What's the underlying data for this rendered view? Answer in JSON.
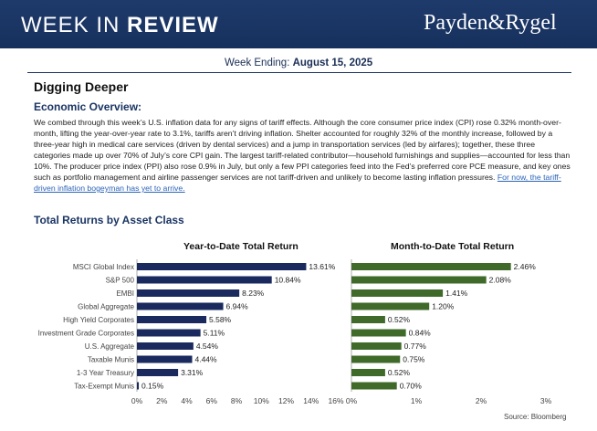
{
  "header": {
    "title_light": "WEEK IN ",
    "title_bold": "REVIEW",
    "logo": "Payden&Rygel"
  },
  "week": {
    "label": "Week Ending: ",
    "date": "August 15, 2025"
  },
  "section": {
    "title": "Digging Deeper",
    "subtitle": "Economic Overview:",
    "body": "We combed through this week’s U.S. inflation data for any signs of tariff effects. Although the core consumer price index (CPI) rose 0.32% month-over-month, lifting the year-over-year rate to 3.1%, tariffs aren’t driving inflation. Shelter accounted for roughly 32% of the monthly increase, followed by a three-year high in medical care services (driven by dental services) and a jump in transportation services (led by airfares); together, these three categories made up over 70% of July’s core CPI gain. The largest tariff-related contributor—household furnishings and supplies—accounted for less than 10%. The producer price index (PPI) also rose 0.9% in July, but only a few PPI categories feed into the Fed’s preferred core PCE measure, and key ones such as portfolio management and airline passenger services are not tariff-driven and unlikely to become lasting inflation pressures. ",
    "link_text": "For now, the tariff-driven inflation bogeyman has yet to arrive."
  },
  "returns": {
    "title": "Total Returns by Asset Class",
    "source": "Source: Bloomberg"
  },
  "chart_data": [
    {
      "type": "bar",
      "orientation": "horizontal",
      "title": "Year-to-Date Total Return",
      "categories": [
        "MSCI Global Index",
        "S&P 500",
        "EMBI",
        "Global Aggregate",
        "High Yield Corporates",
        "Investment Grade Corporates",
        "U.S. Aggregate",
        "Taxable Munis",
        "1-3 Year Treasury",
        "Tax-Exempt Munis"
      ],
      "values": [
        13.61,
        10.84,
        8.23,
        6.94,
        5.58,
        5.11,
        4.54,
        4.44,
        3.31,
        0.15
      ],
      "value_labels": [
        "13.61%",
        "10.84%",
        "8.23%",
        "6.94%",
        "5.58%",
        "5.11%",
        "4.54%",
        "4.44%",
        "3.31%",
        "0.15%"
      ],
      "xlim": [
        0,
        16
      ],
      "xticks": [
        "0%",
        "2%",
        "4%",
        "6%",
        "8%",
        "10%",
        "12%",
        "14%",
        "16%"
      ],
      "color": "#1a2a5e"
    },
    {
      "type": "bar",
      "orientation": "horizontal",
      "title": "Month-to-Date Total Return",
      "values": [
        2.46,
        2.08,
        1.41,
        1.2,
        0.52,
        0.84,
        0.77,
        0.75,
        0.52,
        0.7
      ],
      "value_labels": [
        "2.46%",
        "2.08%",
        "1.41%",
        "1.20%",
        "0.52%",
        "0.84%",
        "0.77%",
        "0.75%",
        "0.52%",
        "0.70%"
      ],
      "xlim": [
        0,
        3
      ],
      "xticks": [
        "0%",
        "1%",
        "2%",
        "3%"
      ],
      "color": "#3f6a2a"
    }
  ]
}
